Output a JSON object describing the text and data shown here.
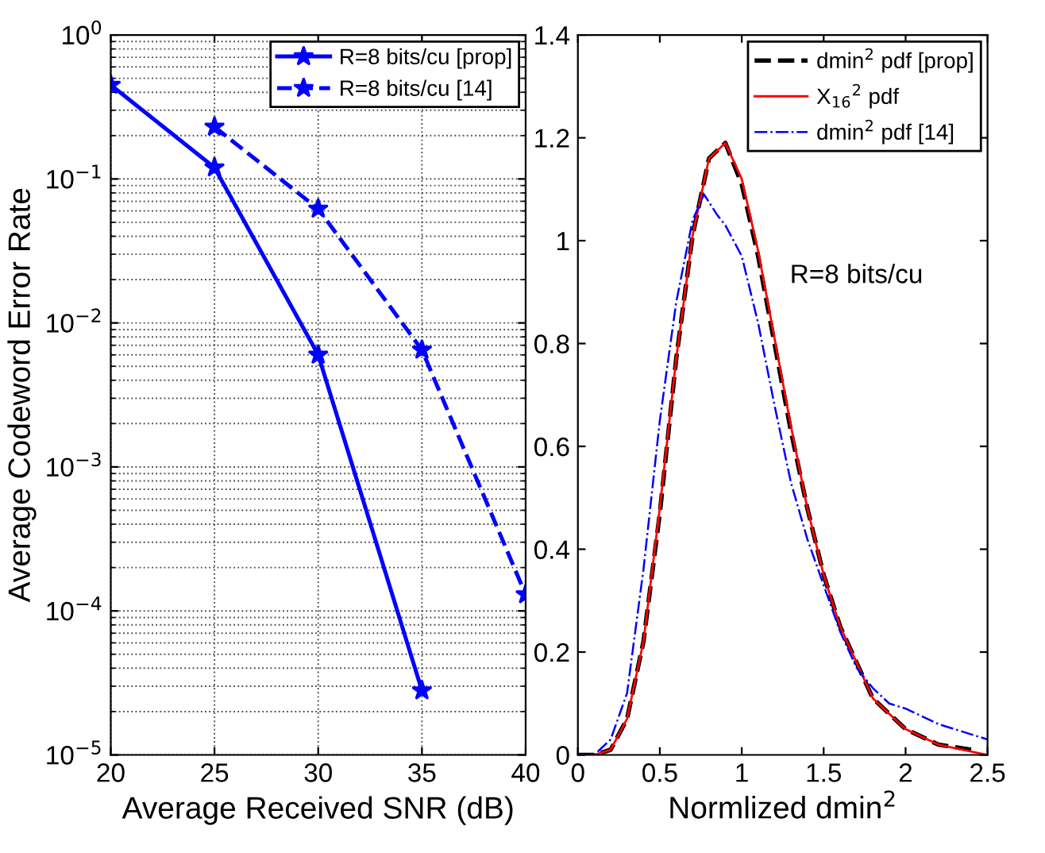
{
  "chart_data": [
    {
      "type": "line",
      "log": "y",
      "grid": true,
      "legend": "top right",
      "xlabel": "Average Received SNR (dB)",
      "ylabel": "Average Codeword Error Rate",
      "xlim": [
        20,
        40
      ],
      "xticks": [
        20,
        25,
        30,
        35,
        40
      ],
      "ylim": [
        1e-05,
        1
      ],
      "yticks": [
        {
          "value": 1e-05,
          "label": "10$^{−5}$"
        },
        {
          "value": 0.0001,
          "label": "10$^{−4}$"
        },
        {
          "value": 0.001,
          "label": "10$^{−3}$"
        },
        {
          "value": 0.01,
          "label": "10$^{−2}$"
        },
        {
          "value": 0.1,
          "label": "10$^{−1}$"
        },
        {
          "value": 1,
          "label": "10$^{0}$"
        }
      ],
      "series": [
        {
          "name": "R=8 bits/cu [prop]",
          "color": "#0000ff",
          "line_style": "solid",
          "marker": "star",
          "x": [
            20,
            25,
            30,
            35
          ],
          "values": [
            0.45,
            0.12,
            0.006,
            2.8e-05
          ]
        },
        {
          "name": "R=8 bits/cu [14]",
          "color": "#0000ff",
          "line_style": "dashed",
          "marker": "star",
          "x": [
            25,
            30,
            35,
            40
          ],
          "values": [
            0.23,
            0.062,
            0.0065,
            0.00013
          ]
        }
      ]
    },
    {
      "type": "line",
      "grid": false,
      "legend": "top right",
      "xlabel": "Normlized dmin$^{2}$",
      "xlim": [
        0,
        2.5
      ],
      "xticks": [
        0,
        0.5,
        1,
        1.5,
        2,
        2.5
      ],
      "ylim": [
        0,
        1.4
      ],
      "yticks": [
        0,
        0.2,
        0.4,
        0.6,
        0.8,
        1,
        1.2,
        1.4
      ],
      "annotations": [
        "R=8 bits/cu"
      ],
      "series": [
        {
          "name": "dmin$^{2}$ pdf [prop]",
          "color": "#000000",
          "line_style": "dashed",
          "marker": "none",
          "x": [
            0,
            0.1,
            0.2,
            0.3,
            0.4,
            0.5,
            0.6,
            0.7,
            0.8,
            0.9,
            1.0,
            1.1,
            1.2,
            1.3,
            1.4,
            1.5,
            1.6,
            1.8,
            2.0,
            2.2,
            2.4
          ],
          "values": [
            0,
            0.0,
            0.01,
            0.07,
            0.22,
            0.47,
            0.77,
            1.01,
            1.16,
            1.19,
            1.11,
            0.97,
            0.8,
            0.63,
            0.48,
            0.35,
            0.25,
            0.11,
            0.05,
            0.02,
            0.01
          ]
        },
        {
          "name": "X$_{16}$$^{2}$ pdf",
          "color": "#ff0000",
          "line_style": "solid",
          "marker": "none",
          "x": [
            0,
            0.1,
            0.2,
            0.3,
            0.4,
            0.5,
            0.6,
            0.7,
            0.8,
            0.9,
            1.0,
            1.1,
            1.2,
            1.3,
            1.4,
            1.5,
            1.6,
            1.8,
            2.0,
            2.2,
            2.5
          ],
          "values": [
            0,
            0.0,
            0.01,
            0.07,
            0.22,
            0.48,
            0.77,
            1.01,
            1.16,
            1.19,
            1.12,
            0.98,
            0.81,
            0.64,
            0.48,
            0.35,
            0.25,
            0.11,
            0.05,
            0.02,
            0.0
          ]
        },
        {
          "name": "dmin$^{2}$ pdf [14]",
          "color": "#0000ff",
          "line_style": "dashdot",
          "marker": "none",
          "x": [
            0,
            0.1,
            0.2,
            0.3,
            0.4,
            0.5,
            0.6,
            0.7,
            0.77,
            0.85,
            0.9,
            1.0,
            1.1,
            1.2,
            1.3,
            1.4,
            1.5,
            1.6,
            1.7,
            1.8,
            1.9,
            2.0,
            2.2,
            2.4,
            2.5
          ],
          "values": [
            0,
            0.0,
            0.03,
            0.12,
            0.36,
            0.65,
            0.88,
            1.04,
            1.09,
            1.05,
            1.03,
            0.97,
            0.84,
            0.68,
            0.53,
            0.42,
            0.33,
            0.24,
            0.17,
            0.13,
            0.1,
            0.09,
            0.06,
            0.04,
            0.03
          ]
        }
      ]
    }
  ]
}
